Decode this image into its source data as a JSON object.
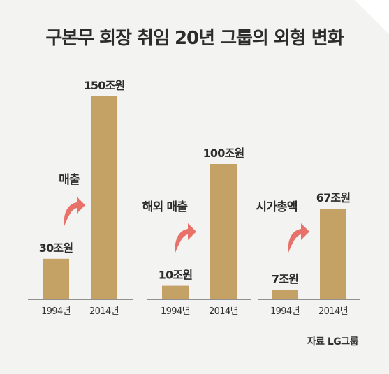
{
  "title": "구본무 회장 취임 20년 그룹의 외형 변화",
  "source": "자료 LG그룹",
  "colors": {
    "bar": "#c4a265",
    "arrow": "#e8716a",
    "text": "#2c2c2c",
    "axis": "#555555"
  },
  "chart_data": [
    {
      "type": "bar",
      "metric_label": "매출",
      "categories": [
        "1994년",
        "2014년"
      ],
      "values": [
        30,
        150
      ],
      "value_labels": [
        "30조원",
        "150조원"
      ],
      "unit": "조원"
    },
    {
      "type": "bar",
      "metric_label": "해외 매출",
      "categories": [
        "1994년",
        "2014년"
      ],
      "values": [
        10,
        100
      ],
      "value_labels": [
        "10조원",
        "100조원"
      ],
      "unit": "조원"
    },
    {
      "type": "bar",
      "metric_label": "시가총액",
      "categories": [
        "1994년",
        "2014년"
      ],
      "values": [
        7,
        67
      ],
      "value_labels": [
        "7조원",
        "67조원"
      ],
      "unit": "조원"
    }
  ]
}
